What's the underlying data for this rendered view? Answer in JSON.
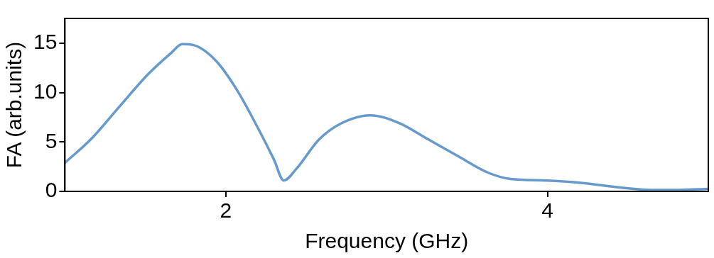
{
  "chart_data": {
    "type": "line",
    "xlabel": "Frequency (GHz)",
    "ylabel": "FA (arb.units)",
    "xlim": [
      1,
      5
    ],
    "ylim": [
      0,
      17.5
    ],
    "xticks": [
      2,
      4
    ],
    "yticks": [
      0,
      5,
      10,
      15
    ],
    "grid": false,
    "legend": false,
    "marker": "none",
    "line_style": "solid",
    "series": [
      {
        "color": "#6699cc",
        "x": [
          1.0,
          1.16,
          1.34,
          1.52,
          1.66,
          1.73,
          1.8,
          1.94,
          2.07,
          2.21,
          2.3,
          2.36,
          2.44,
          2.58,
          2.72,
          2.9,
          3.08,
          3.26,
          3.44,
          3.63,
          3.77,
          4.0,
          4.22,
          4.45,
          4.64,
          4.82,
          5.0
        ],
        "values": [
          2.9,
          5.25,
          8.6,
          11.9,
          14.0,
          14.9,
          14.8,
          13.2,
          10.25,
          6.1,
          3.2,
          1.1,
          2.3,
          5.25,
          6.9,
          7.7,
          6.9,
          5.25,
          3.6,
          1.9,
          1.25,
          1.1,
          0.85,
          0.4,
          0.15,
          0.15,
          0.25
        ]
      }
    ]
  }
}
